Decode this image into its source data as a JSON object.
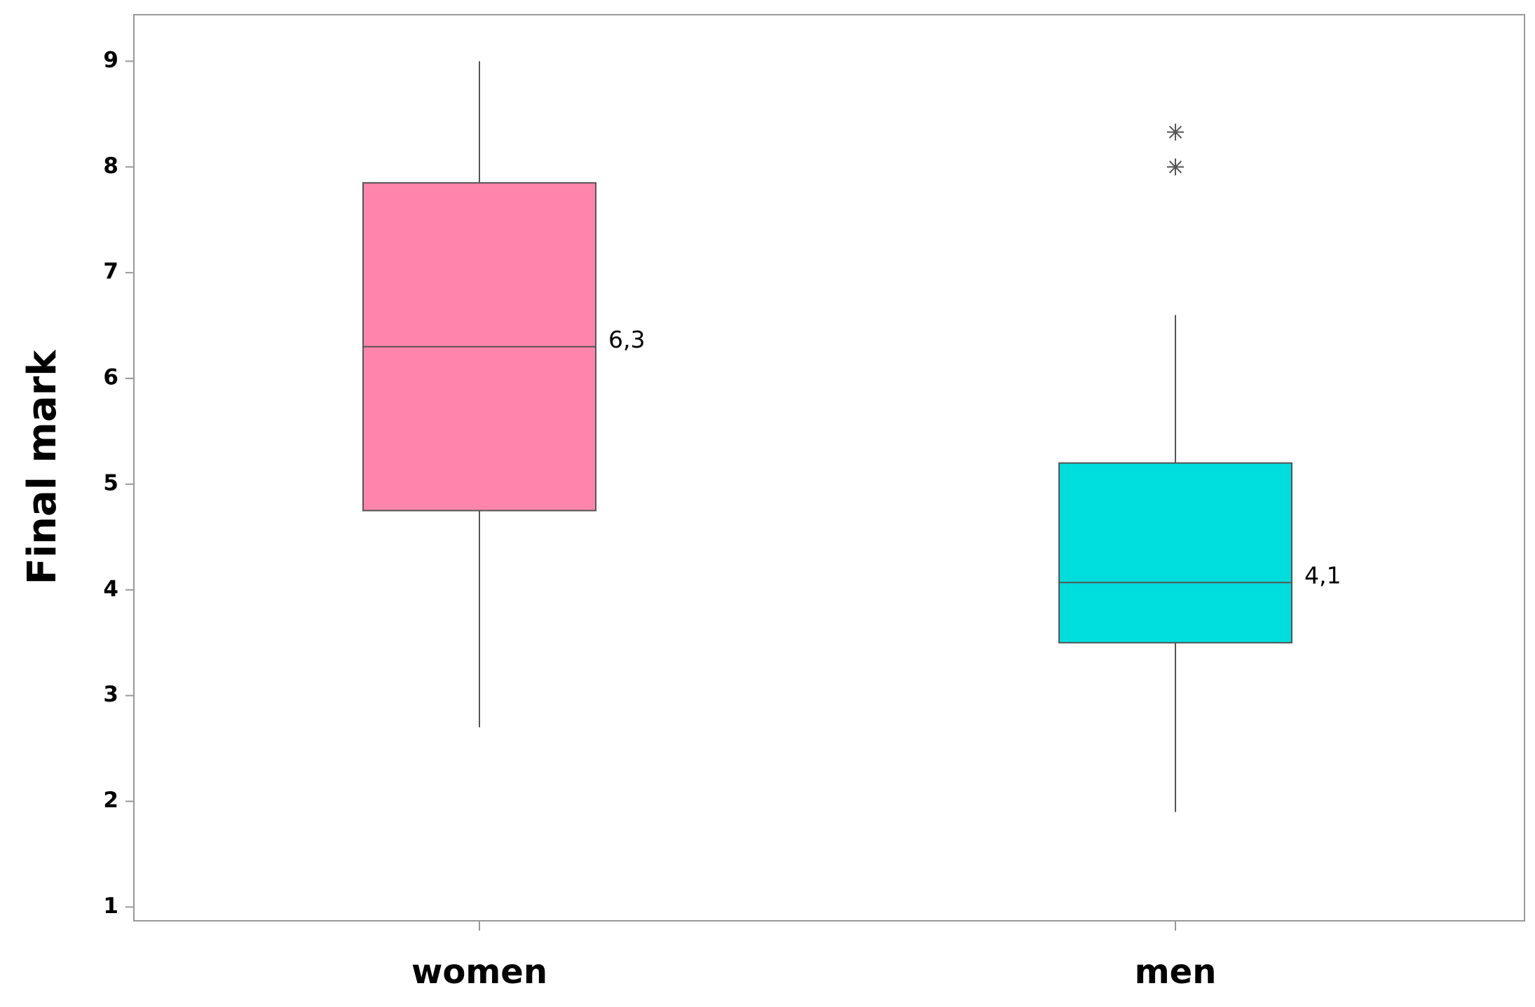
{
  "chart_data": {
    "type": "box",
    "ylabel": "Final mark",
    "categories": [
      "women",
      "men"
    ],
    "boxes": [
      {
        "low": 2.7,
        "q1": 4.75,
        "median": 6.3,
        "median_label": "6,3",
        "q3": 7.85,
        "high": 9.0,
        "outliers": [],
        "color": "#ff85ad"
      },
      {
        "low": 1.9,
        "q1": 3.5,
        "median": 4.07,
        "median_label": "4,1",
        "q3": 5.2,
        "high": 6.6,
        "outliers": [
          8.0,
          8.33
        ],
        "color": "#00dddd"
      }
    ],
    "ylim": [
      0.87,
      9.44
    ],
    "yticks": [
      1,
      2,
      3,
      4,
      5,
      6,
      7,
      8,
      9
    ]
  }
}
